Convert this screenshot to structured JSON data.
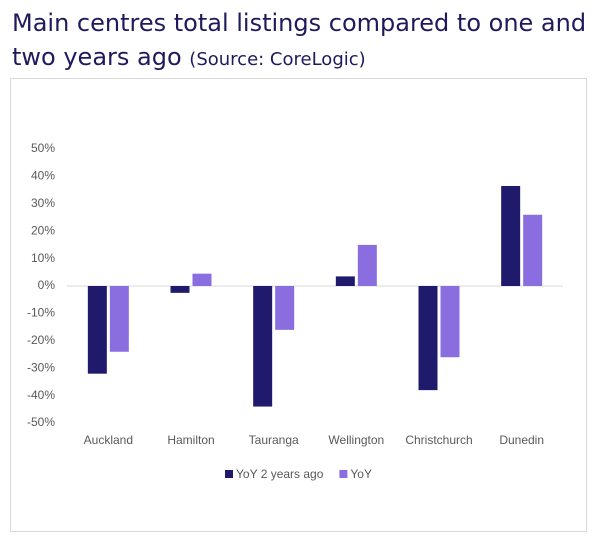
{
  "chart_data": {
    "type": "bar",
    "title": "Main centres total listings compared to one and two years ago",
    "source": "(Source: CoreLogic)",
    "categories": [
      "Auckland",
      "Hamilton",
      "Tauranga",
      "Wellington",
      "Christchurch",
      "Dunedin"
    ],
    "series": [
      {
        "name": "YoY 2 years ago",
        "color": "#1f1a6b",
        "values": [
          -32,
          -2.5,
          -44,
          3.5,
          -38,
          36.5
        ]
      },
      {
        "name": "YoY",
        "color": "#8a6ee0",
        "values": [
          -24,
          4.5,
          -16,
          15,
          -26,
          26
        ]
      }
    ],
    "ylim": [
      -50,
      50
    ],
    "yticks": [
      {
        "value": -50,
        "label": "-50%"
      },
      {
        "value": -40,
        "label": "-40%"
      },
      {
        "value": -30,
        "label": "-30%"
      },
      {
        "value": -20,
        "label": "-20%"
      },
      {
        "value": -10,
        "label": "-10%"
      },
      {
        "value": 0,
        "label": "0%"
      },
      {
        "value": 10,
        "label": "10%"
      },
      {
        "value": 20,
        "label": "20%"
      },
      {
        "value": 30,
        "label": "30%"
      },
      {
        "value": 40,
        "label": "40%"
      },
      {
        "value": 50,
        "label": "50%"
      }
    ],
    "legend": "bottom"
  }
}
